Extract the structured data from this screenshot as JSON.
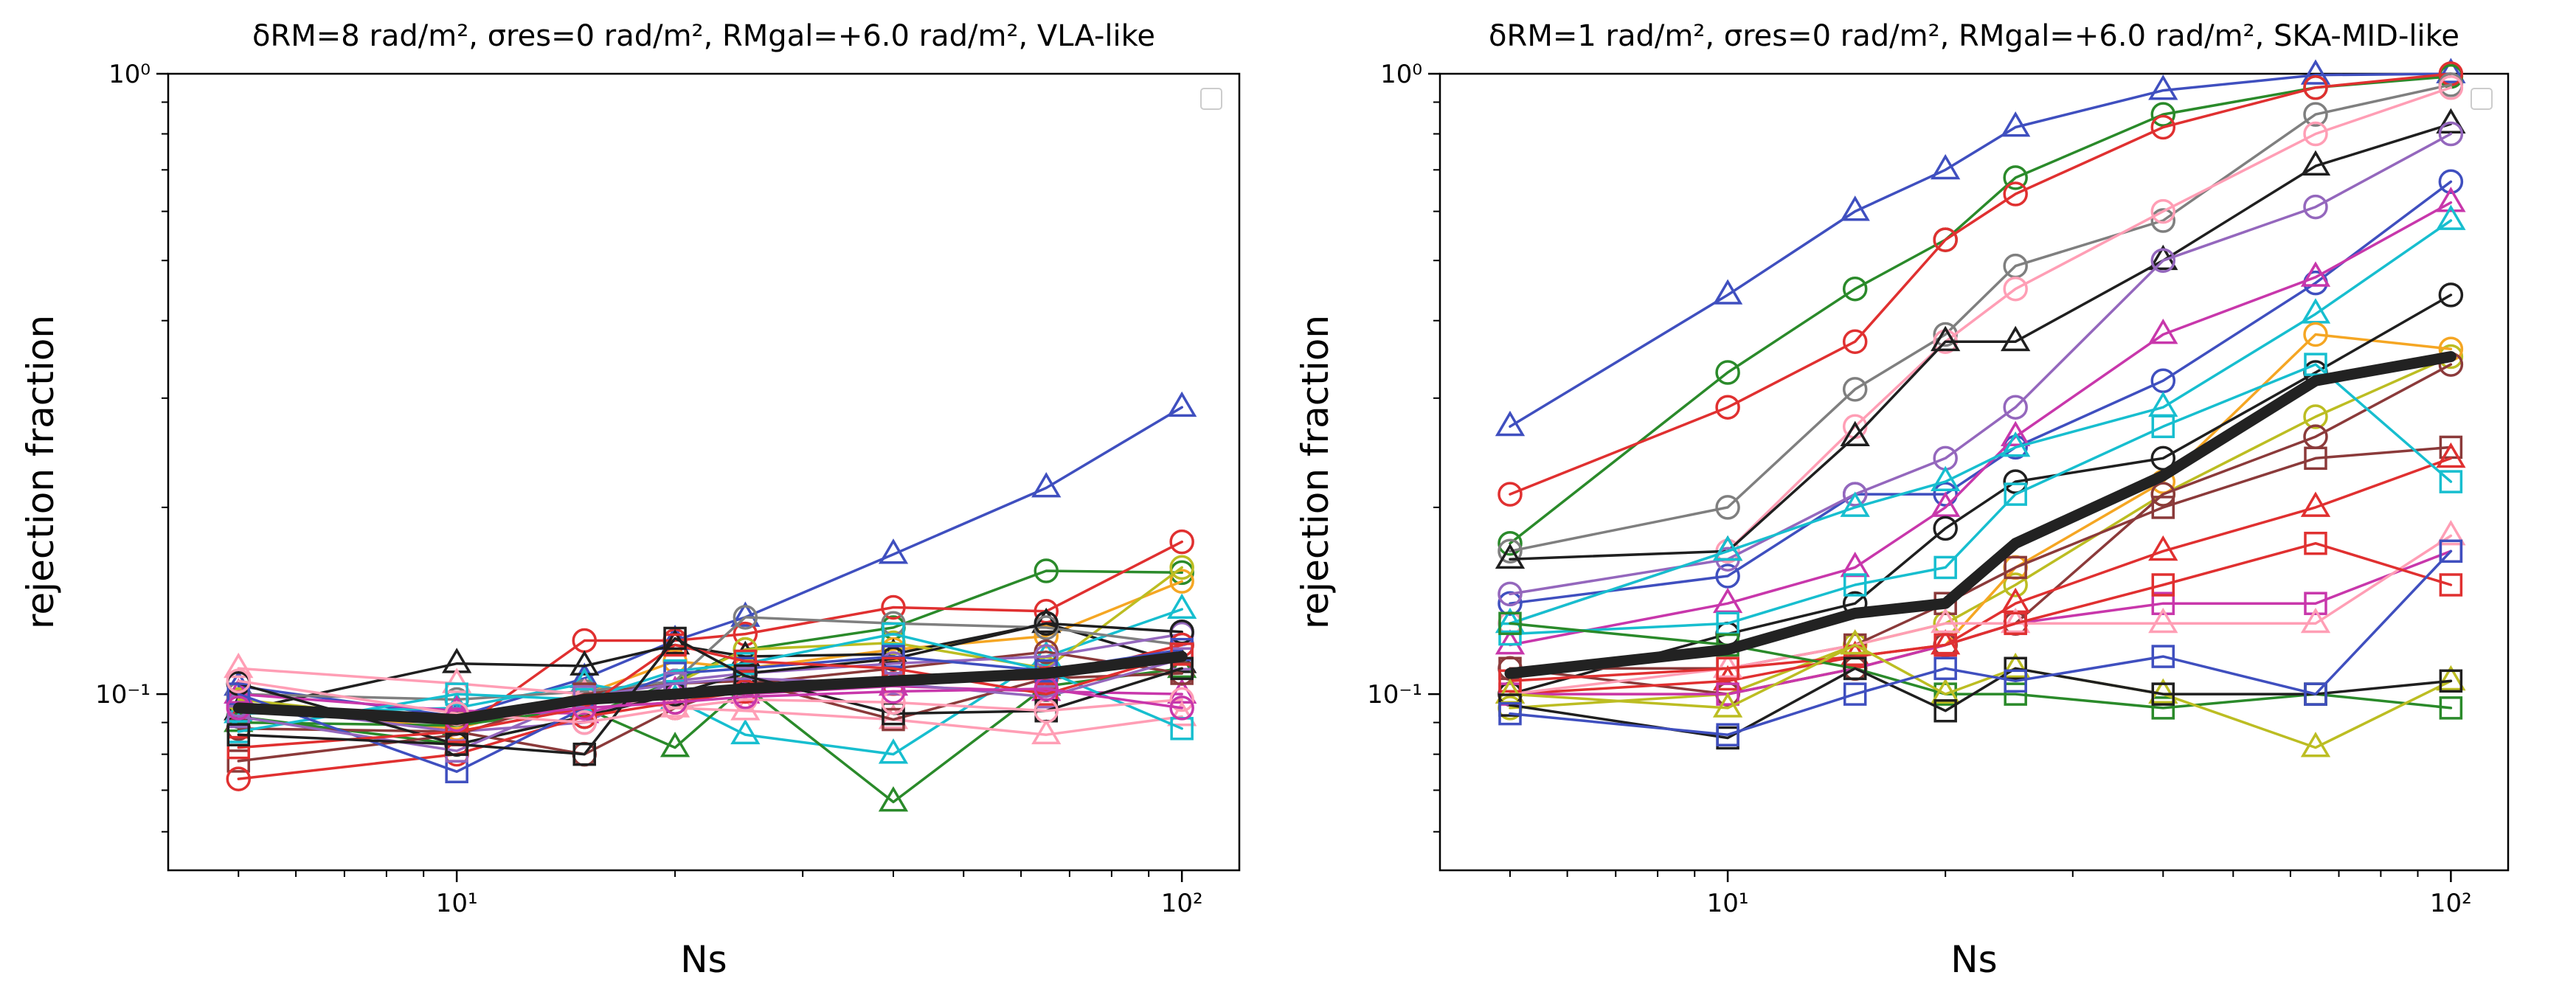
{
  "chart_data": [
    {
      "type": "line",
      "title": "δRM=8 rad/m², σres=0 rad/m², RMgal=+6.0 rad/m², VLA-like",
      "xlabel": "Ns",
      "ylabel": "rejection fraction",
      "xscale": "log",
      "yscale": "log",
      "xlim": [
        4,
        120
      ],
      "ylim": [
        0.052,
        1.0
      ],
      "x_ticks": [
        {
          "value": 10,
          "label": "10¹"
        },
        {
          "value": 100,
          "label": "10²"
        }
      ],
      "y_ticks": [
        {
          "value": 0.1,
          "label": "10⁻¹"
        },
        {
          "value": 1.0,
          "label": "10⁰"
        }
      ],
      "legend": "top-right (empty)",
      "x": [
        5,
        10,
        15,
        20,
        25,
        40,
        65,
        100
      ],
      "series": [
        {
          "name": "s1",
          "color": "#3f4fbf",
          "marker": "triangle",
          "values": [
            0.103,
            0.092,
            0.106,
            0.122,
            0.133,
            0.168,
            0.215,
            0.29
          ]
        },
        {
          "name": "s2",
          "color": "#2a8a2a",
          "marker": "circle",
          "values": [
            0.092,
            0.083,
            0.092,
            0.105,
            0.118,
            0.128,
            0.158,
            0.157
          ]
        },
        {
          "name": "s3",
          "color": "#e03030",
          "marker": "circle",
          "values": [
            0.097,
            0.087,
            0.122,
            0.122,
            0.125,
            0.138,
            0.136,
            0.176
          ]
        },
        {
          "name": "s4",
          "color": "#f5a623",
          "marker": "circle",
          "values": [
            0.095,
            0.088,
            0.1,
            0.113,
            0.11,
            0.118,
            0.124,
            0.152
          ]
        },
        {
          "name": "s5",
          "color": "#1f1f1f",
          "marker": "triangle",
          "values": [
            0.094,
            0.112,
            0.111,
            0.12,
            0.115,
            0.116,
            0.13,
            0.112
          ]
        },
        {
          "name": "s6",
          "color": "#17becf",
          "marker": "triangle",
          "values": [
            0.093,
            0.095,
            0.104,
            0.098,
            0.086,
            0.08,
            0.115,
            0.137
          ]
        },
        {
          "name": "s7",
          "color": "#bcbd22",
          "marker": "circle",
          "values": [
            0.098,
            0.09,
            0.1,
            0.104,
            0.118,
            0.121,
            0.11,
            0.16
          ]
        },
        {
          "name": "s8",
          "color": "#2a8a2a",
          "marker": "triangle",
          "values": [
            0.09,
            0.089,
            0.095,
            0.082,
            0.103,
            0.067,
            0.103,
            0.11
          ]
        },
        {
          "name": "s9",
          "color": "#7f7f7f",
          "marker": "circle",
          "values": [
            0.1,
            0.098,
            0.101,
            0.105,
            0.133,
            0.13,
            0.128,
            0.12
          ]
        },
        {
          "name": "s10",
          "color": "#8b3a3a",
          "marker": "circle",
          "values": [
            0.088,
            0.087,
            0.08,
            0.095,
            0.104,
            0.11,
            0.117,
            0.108
          ]
        },
        {
          "name": "s11",
          "color": "#9467bd",
          "marker": "circle",
          "values": [
            0.096,
            0.087,
            0.09,
            0.105,
            0.108,
            0.112,
            0.115,
            0.125
          ]
        },
        {
          "name": "s12",
          "color": "#c837ab",
          "marker": "triangle",
          "values": [
            0.1,
            0.094,
            0.093,
            0.101,
            0.1,
            0.103,
            0.101,
            0.1
          ]
        },
        {
          "name": "s13",
          "color": "#ff9eb5",
          "marker": "triangle",
          "values": [
            0.11,
            0.104,
            0.1,
            0.095,
            0.094,
            0.091,
            0.086,
            0.092
          ]
        },
        {
          "name": "s14",
          "color": "#8b3a3a",
          "marker": "square",
          "values": [
            0.078,
            0.086,
            0.1,
            0.104,
            0.105,
            0.091,
            0.106,
            0.108
          ]
        },
        {
          "name": "s15",
          "color": "#1f1f1f",
          "marker": "circle",
          "values": [
            0.104,
            0.083,
            0.092,
            0.1,
            0.108,
            0.114,
            0.13,
            0.126
          ]
        },
        {
          "name": "s16",
          "color": "#17becf",
          "marker": "square",
          "values": [
            0.087,
            0.1,
            0.098,
            0.109,
            0.112,
            0.125,
            0.109,
            0.088
          ]
        },
        {
          "name": "s17",
          "color": "#e03030",
          "marker": "circle",
          "values": [
            0.073,
            0.08,
            0.092,
            0.097,
            0.101,
            0.104,
            0.106,
            0.12
          ]
        },
        {
          "name": "s18",
          "color": "#3f4fbf",
          "marker": "square",
          "values": [
            0.1,
            0.075,
            0.095,
            0.108,
            0.11,
            0.115,
            0.109,
            0.118
          ]
        },
        {
          "name": "s19",
          "color": "#9467bd",
          "marker": "square",
          "values": [
            0.092,
            0.081,
            0.099,
            0.104,
            0.106,
            0.104,
            0.099,
            0.114
          ]
        },
        {
          "name": "s20",
          "color": "#e03030",
          "marker": "square",
          "values": [
            0.082,
            0.087,
            0.095,
            0.12,
            0.113,
            0.11,
            0.1,
            0.116
          ]
        },
        {
          "name": "s21",
          "color": "#1f1f1f",
          "marker": "square",
          "values": [
            0.086,
            0.083,
            0.08,
            0.123,
            0.107,
            0.093,
            0.094,
            0.11
          ]
        },
        {
          "name": "s22",
          "color": "#ff9eb5",
          "marker": "circle",
          "values": [
            0.105,
            0.093,
            0.09,
            0.095,
            0.098,
            0.097,
            0.094,
            0.098
          ]
        },
        {
          "name": "s23",
          "color": "#c837ab",
          "marker": "circle",
          "values": [
            0.095,
            0.091,
            0.095,
            0.097,
            0.099,
            0.101,
            0.102,
            0.095
          ]
        },
        {
          "name": "mean",
          "color": "#222222",
          "marker": "none",
          "thick": true,
          "values": [
            0.095,
            0.091,
            0.098,
            0.1,
            0.102,
            0.105,
            0.108,
            0.115
          ]
        }
      ]
    },
    {
      "type": "line",
      "title": "δRM=1 rad/m², σres=0 rad/m², RMgal=+6.0 rad/m², SKA-MID-like",
      "xlabel": "Ns",
      "ylabel": "rejection fraction",
      "xscale": "log",
      "yscale": "log",
      "xlim": [
        4,
        120
      ],
      "ylim": [
        0.052,
        1.0
      ],
      "x_ticks": [
        {
          "value": 10,
          "label": "10¹"
        },
        {
          "value": 100,
          "label": "10²"
        }
      ],
      "y_ticks": [
        {
          "value": 0.1,
          "label": "10⁻¹"
        },
        {
          "value": 1.0,
          "label": "10⁰"
        }
      ],
      "legend": "top-right (empty)",
      "x": [
        5,
        10,
        15,
        20,
        25,
        40,
        65,
        100
      ],
      "series": [
        {
          "name": "s1",
          "color": "#3f4fbf",
          "marker": "triangle",
          "values": [
            0.27,
            0.44,
            0.6,
            0.7,
            0.82,
            0.94,
            0.995,
            1.0
          ]
        },
        {
          "name": "s2",
          "color": "#2a8a2a",
          "marker": "circle",
          "values": [
            0.175,
            0.33,
            0.45,
            0.54,
            0.68,
            0.86,
            0.95,
            0.99
          ]
        },
        {
          "name": "s3",
          "color": "#e03030",
          "marker": "circle",
          "values": [
            0.21,
            0.29,
            0.37,
            0.54,
            0.64,
            0.82,
            0.95,
            1.0
          ]
        },
        {
          "name": "s4",
          "color": "#7f7f7f",
          "marker": "circle",
          "values": [
            0.17,
            0.2,
            0.31,
            0.38,
            0.49,
            0.58,
            0.86,
            0.96
          ]
        },
        {
          "name": "s5",
          "color": "#ff9eb5",
          "marker": "circle",
          "values": [
            0.13,
            0.17,
            0.27,
            0.37,
            0.45,
            0.6,
            0.8,
            0.95
          ]
        },
        {
          "name": "s6",
          "color": "#1f1f1f",
          "marker": "triangle",
          "values": [
            0.165,
            0.17,
            0.26,
            0.37,
            0.37,
            0.5,
            0.71,
            0.83
          ]
        },
        {
          "name": "s7",
          "color": "#3f4fbf",
          "marker": "circle",
          "values": [
            0.14,
            0.155,
            0.21,
            0.21,
            0.25,
            0.32,
            0.46,
            0.67
          ]
        },
        {
          "name": "s8",
          "color": "#c837ab",
          "marker": "triangle",
          "values": [
            0.12,
            0.14,
            0.16,
            0.2,
            0.26,
            0.38,
            0.47,
            0.62
          ]
        },
        {
          "name": "s9",
          "color": "#9467bd",
          "marker": "circle",
          "values": [
            0.145,
            0.165,
            0.21,
            0.24,
            0.29,
            0.5,
            0.61,
            0.8
          ]
        },
        {
          "name": "s10",
          "color": "#17becf",
          "marker": "triangle",
          "values": [
            0.13,
            0.17,
            0.2,
            0.22,
            0.25,
            0.29,
            0.41,
            0.58
          ]
        },
        {
          "name": "s11",
          "color": "#bcbd22",
          "marker": "circle",
          "values": [
            0.095,
            0.1,
            0.12,
            0.13,
            0.15,
            0.21,
            0.28,
            0.35
          ]
        },
        {
          "name": "s12",
          "color": "#f5a623",
          "marker": "circle",
          "values": [
            0.1,
            0.1,
            0.11,
            0.12,
            0.16,
            0.22,
            0.38,
            0.36
          ]
        },
        {
          "name": "s13",
          "color": "#1f1f1f",
          "marker": "circle",
          "values": [
            0.1,
            0.125,
            0.14,
            0.185,
            0.22,
            0.24,
            0.33,
            0.44
          ]
        },
        {
          "name": "s14",
          "color": "#8b3a3a",
          "marker": "circle",
          "values": [
            0.11,
            0.1,
            0.11,
            0.12,
            0.13,
            0.21,
            0.26,
            0.34
          ]
        },
        {
          "name": "s15",
          "color": "#8b3a3a",
          "marker": "square",
          "values": [
            0.11,
            0.11,
            0.12,
            0.14,
            0.16,
            0.2,
            0.24,
            0.25
          ]
        },
        {
          "name": "s16",
          "color": "#e03030",
          "marker": "triangle",
          "values": [
            0.1,
            0.105,
            0.115,
            0.12,
            0.14,
            0.17,
            0.2,
            0.24
          ]
        },
        {
          "name": "s17",
          "color": "#17becf",
          "marker": "square",
          "values": [
            0.125,
            0.13,
            0.15,
            0.16,
            0.21,
            0.27,
            0.34,
            0.22
          ]
        },
        {
          "name": "s18",
          "color": "#c837ab",
          "marker": "square",
          "values": [
            0.1,
            0.1,
            0.11,
            0.12,
            0.13,
            0.14,
            0.14,
            0.17
          ]
        },
        {
          "name": "s19",
          "color": "#ff9eb5",
          "marker": "triangle",
          "values": [
            0.1,
            0.11,
            0.12,
            0.13,
            0.13,
            0.13,
            0.13,
            0.18
          ]
        },
        {
          "name": "s20",
          "color": "#e03030",
          "marker": "square",
          "values": [
            0.105,
            0.11,
            0.115,
            0.12,
            0.13,
            0.15,
            0.175,
            0.15
          ]
        },
        {
          "name": "s21",
          "color": "#2a8a2a",
          "marker": "square",
          "values": [
            0.13,
            0.12,
            0.11,
            0.1,
            0.1,
            0.095,
            0.1,
            0.095
          ]
        },
        {
          "name": "s22",
          "color": "#bcbd22",
          "marker": "triangle",
          "values": [
            0.1,
            0.095,
            0.12,
            0.1,
            0.11,
            0.1,
            0.082,
            0.105
          ]
        },
        {
          "name": "s23",
          "color": "#1f1f1f",
          "marker": "square",
          "values": [
            0.096,
            0.085,
            0.11,
            0.094,
            0.11,
            0.1,
            0.1,
            0.105
          ]
        },
        {
          "name": "s24",
          "color": "#3f4fbf",
          "marker": "square",
          "values": [
            0.093,
            0.086,
            0.1,
            0.11,
            0.105,
            0.115,
            0.1,
            0.17
          ]
        },
        {
          "name": "mean",
          "color": "#222222",
          "marker": "none",
          "thick": true,
          "values": [
            0.108,
            0.118,
            0.135,
            0.14,
            0.175,
            0.225,
            0.32,
            0.35
          ]
        }
      ]
    }
  ]
}
